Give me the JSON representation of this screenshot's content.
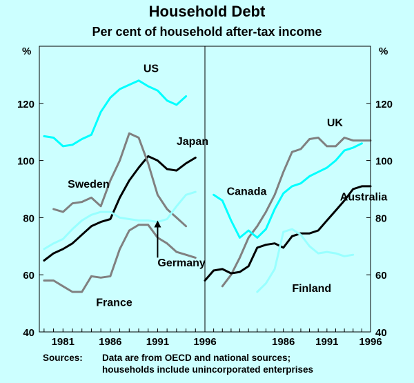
{
  "chart_data": {
    "type": "line",
    "title": "Household Debt",
    "subtitle": "Per cent of household after-tax income",
    "y_unit": "%",
    "ylim": [
      40,
      140
    ],
    "yticks": [
      40,
      60,
      80,
      100,
      120
    ],
    "grid": false,
    "panels": [
      {
        "xlim": [
          1978.5,
          1996
        ],
        "xticks": [
          "1981",
          "1986",
          "1991",
          "1996"
        ],
        "series": [
          {
            "name": "US",
            "color": "#00ffff",
            "width": 3,
            "x": [
              1979,
              1980,
              1981,
              1982,
              1983,
              1984,
              1985,
              1986,
              1987,
              1988,
              1989,
              1990,
              1991,
              1992,
              1993,
              1994
            ],
            "y": [
              108.5,
              108,
              105,
              105.5,
              107.5,
              109,
              117,
              122,
              125,
              126.5,
              128,
              126,
              124.5,
              121,
              119.5,
              122.5
            ],
            "label": {
              "x": 1989.5,
              "y": 131
            }
          },
          {
            "name": "Japan",
            "color": "#000000",
            "width": 3,
            "x": [
              1979,
              1980,
              1981,
              1982,
              1983,
              1984,
              1985,
              1986,
              1987,
              1988,
              1989,
              1990,
              1991,
              1992,
              1993,
              1994,
              1995
            ],
            "y": [
              65,
              67.5,
              69,
              71,
              74,
              77,
              78.5,
              79.5,
              87,
              93,
              97.5,
              101.5,
              100,
              97,
              96.5,
              99,
              101
            ],
            "label": {
              "x": 1993,
              "y": 105.5
            }
          },
          {
            "name": "Sweden",
            "color": "#808080",
            "width": 3,
            "x": [
              1980,
              1981,
              1982,
              1983,
              1984,
              1985,
              1986,
              1987,
              1988,
              1989,
              1990,
              1991,
              1992,
              1993,
              1994
            ],
            "y": [
              83,
              82,
              85,
              85.5,
              87,
              84,
              93,
              100,
              109.5,
              108,
              99,
              88,
              83,
              80,
              77
            ],
            "label": {
              "x": 1981.5,
              "y": 90.5
            }
          },
          {
            "name": "Germany",
            "color": "#99ffff",
            "width": 3,
            "x": [
              1979,
              1980,
              1981,
              1982,
              1983,
              1984,
              1985,
              1986,
              1987,
              1988,
              1989,
              1990,
              1991,
              1992,
              1993,
              1994,
              1995
            ],
            "y": [
              69,
              71,
              72.5,
              76,
              79,
              81,
              82,
              82,
              80,
              79.5,
              79,
              79,
              78.5,
              79.5,
              84,
              88,
              89
            ],
            "label": {
              "x": 1991,
              "y": 63
            }
          },
          {
            "name": "France",
            "color": "#808080",
            "width": 3,
            "x": [
              1979,
              1980,
              1981,
              1982,
              1983,
              1984,
              1985,
              1986,
              1987,
              1988,
              1989,
              1990,
              1991,
              1992,
              1993,
              1994,
              1995
            ],
            "y": [
              58,
              58,
              56,
              54,
              54,
              59.5,
              59,
              59.5,
              69,
              75.5,
              77.5,
              77.5,
              73,
              71,
              68,
              67,
              66
            ],
            "label": {
              "x": 1984.5,
              "y": 49
            }
          }
        ],
        "annotation": {
          "type": "arrow",
          "from": [
            1991,
            66
          ],
          "to": [
            1991,
            79
          ]
        }
      },
      {
        "xlim": [
          1977,
          1996
        ],
        "xticks": [
          "1986",
          "1991",
          "1996"
        ],
        "series": [
          {
            "name": "UK",
            "color": "#808080",
            "width": 3,
            "x": [
              1979,
              1980,
              1981,
              1982,
              1983,
              1984,
              1985,
              1986,
              1987,
              1988,
              1989,
              1990,
              1991,
              1992,
              1993,
              1994,
              1995,
              1996
            ],
            "y": [
              56,
              60,
              66,
              73,
              77,
              82,
              88,
              96,
              103,
              104,
              107.5,
              108,
              105,
              105,
              108,
              107,
              107,
              107
            ],
            "label": {
              "x": 1991,
              "y": 112
            }
          },
          {
            "name": "Canada",
            "color": "#00ffff",
            "width": 3,
            "x": [
              1978,
              1979,
              1980,
              1981,
              1982,
              1983,
              1984,
              1985,
              1986,
              1987,
              1988,
              1989,
              1990,
              1991,
              1992,
              1993,
              1994,
              1995
            ],
            "y": [
              88,
              86,
              79,
              73,
              75.5,
              73,
              76,
              83,
              88.5,
              91,
              92,
              94.5,
              96,
              97.5,
              100,
              103.5,
              104.5,
              106
            ],
            "label": {
              "x": 1979.5,
              "y": 88
            }
          },
          {
            "name": "Australia",
            "color": "#000000",
            "width": 3,
            "x": [
              1977,
              1978,
              1979,
              1980,
              1981,
              1982,
              1983,
              1984,
              1985,
              1986,
              1987,
              1988,
              1989,
              1990,
              1991,
              1992,
              1993,
              1994,
              1995,
              1996
            ],
            "y": [
              58,
              61.5,
              62,
              60.5,
              61,
              63,
              69.5,
              70.5,
              71,
              69.5,
              73.5,
              74.5,
              74.5,
              75.5,
              79,
              82.5,
              86,
              90,
              91,
              91
            ],
            "label": {
              "x": 1992.5,
              "y": 86
            }
          },
          {
            "name": "Finland",
            "color": "#99ffff",
            "width": 3,
            "x": [
              1983,
              1984,
              1985,
              1986,
              1987,
              1988,
              1989,
              1990,
              1991,
              1992,
              1993,
              1994
            ],
            "y": [
              54,
              57,
              62,
              75,
              76,
              74,
              70,
              67.5,
              68,
              67.5,
              66.5,
              67
            ],
            "label": {
              "x": 1987,
              "y": 54
            }
          }
        ]
      }
    ],
    "footer": {
      "label": "Sources:",
      "lines": [
        "Data are from OECD and national sources;",
        "households include unincorporated enterprises"
      ]
    }
  }
}
